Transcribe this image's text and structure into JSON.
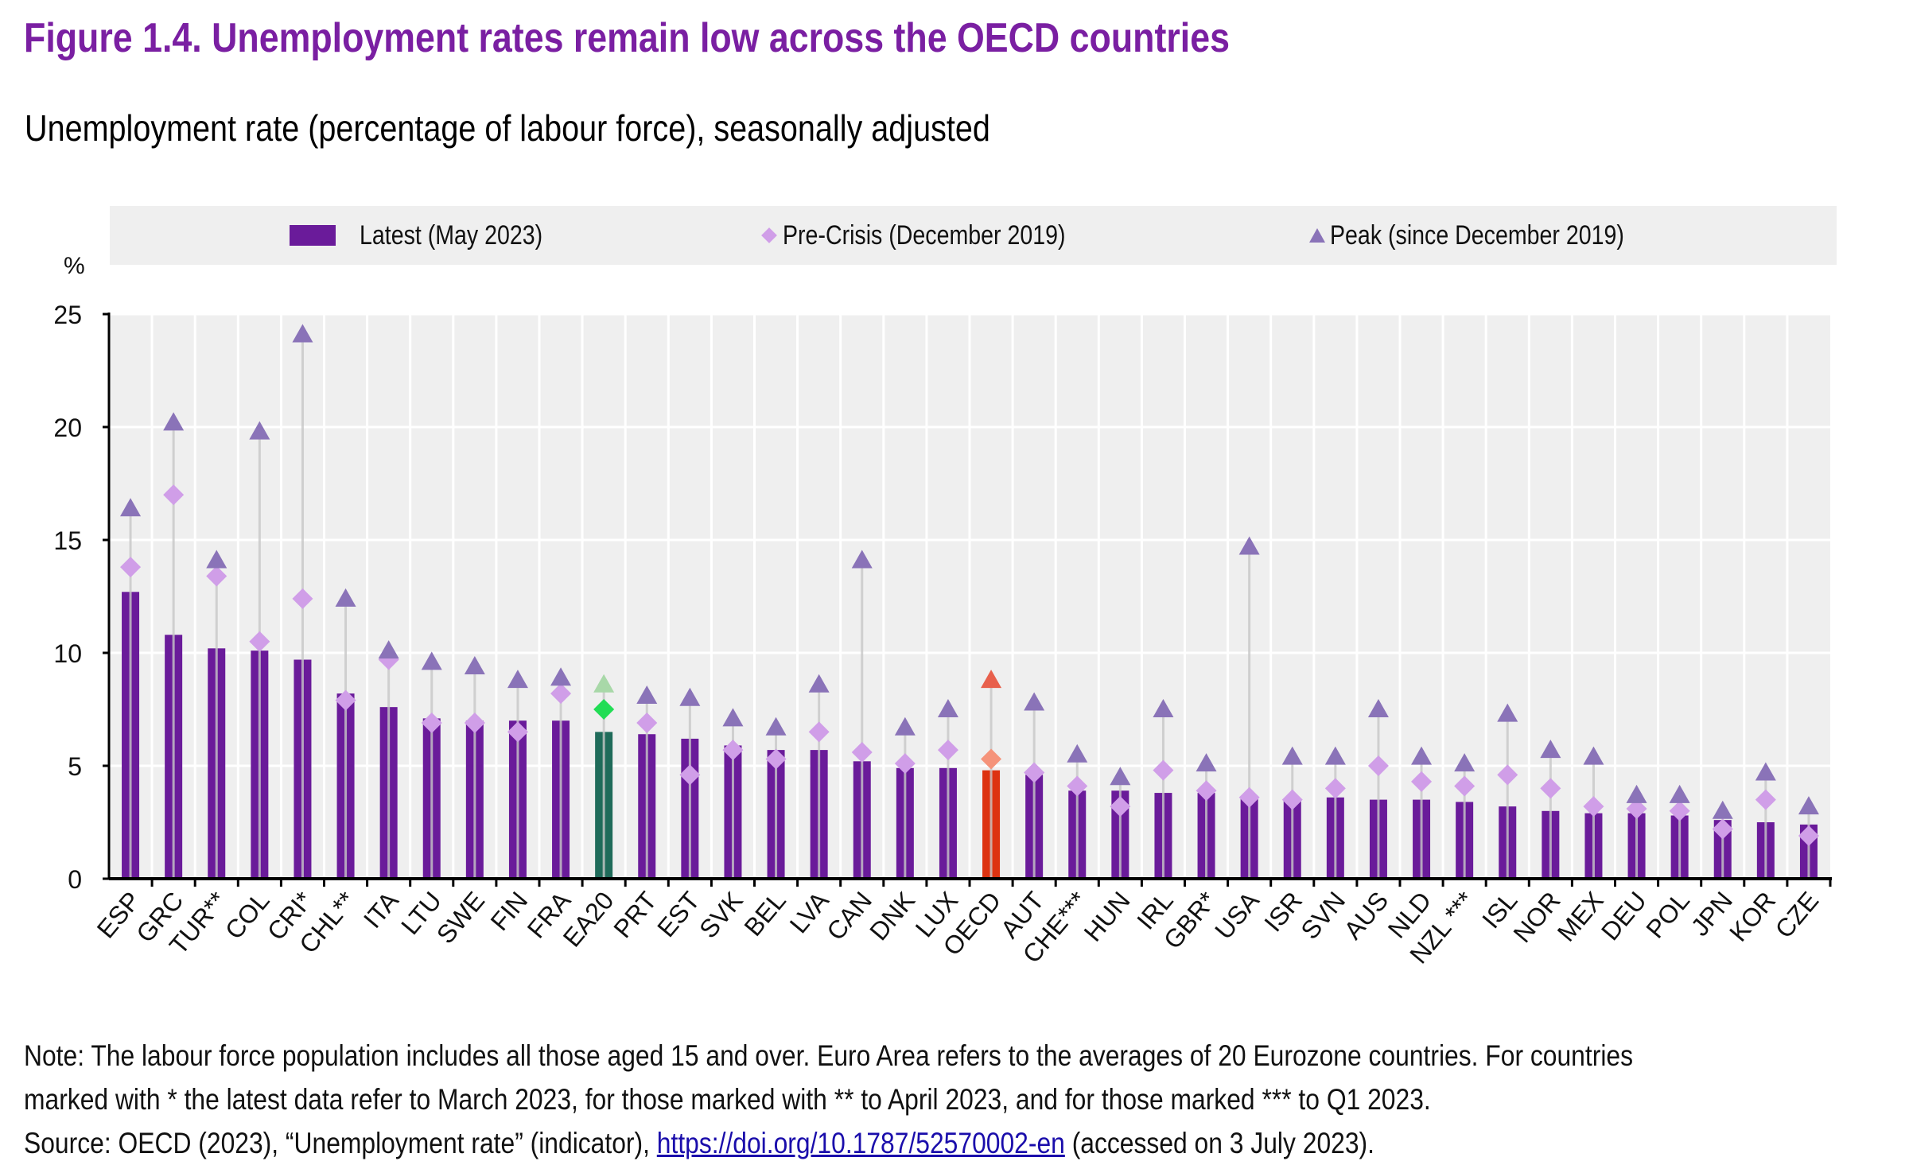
{
  "title": "Figure 1.4. Unemployment rates remain low across the OECD countries",
  "subtitle": "Unemployment rate (percentage of labour force), seasonally adjusted",
  "legend": {
    "latest": "Latest (May 2023)",
    "precrisis": "Pre-Crisis (December 2019)",
    "peak": "Peak (since December 2019)"
  },
  "y_unit": "%",
  "notes": {
    "line1": "Note: The labour force population includes all those aged 15 and over. Euro Area refers to the averages of 20 Eurozone countries. For countries",
    "line2": "marked with * the latest data refer to March 2023, for those marked with ** to April 2023, and for those marked *** to Q1 2023.",
    "source_prefix": "Source: OECD (2023), “Unemployment rate” (indicator), ",
    "source_link": "https://doi.org/10.1787/52570002-en",
    "source_suffix": " (accessed on 3 July 2023)."
  },
  "colors": {
    "bar": "#6a1b9a",
    "precrisis": "#d09ee8",
    "peak": "#8a73b8",
    "ea20_bar": "#1f6b5a",
    "ea20_precrisis": "#22dd55",
    "ea20_peak": "#a8d8a8",
    "oecd_bar": "#dd3311",
    "oecd_precrisis": "#f5937a",
    "oecd_peak": "#e8604c",
    "title": "#7a1fa2"
  },
  "chart_data": {
    "type": "bar",
    "title": "Figure 1.4. Unemployment rates remain low across the OECD countries",
    "subtitle": "Unemployment rate (percentage of labour force), seasonally adjusted",
    "xlabel": "",
    "ylabel": "%",
    "ylim": [
      0,
      25
    ],
    "yticks": [
      0,
      5,
      10,
      15,
      20,
      25
    ],
    "grid": true,
    "legend_position": "top",
    "highlight": {
      "EA20": "ea20",
      "OECD": "oecd"
    },
    "categories": [
      "ESP",
      "GRC",
      "TUR**",
      "COL",
      "CRI*",
      "CHL**",
      "ITA",
      "LTU",
      "SWE",
      "FIN",
      "FRA",
      "EA20",
      "PRT",
      "EST",
      "SVK",
      "BEL",
      "LVA",
      "CAN",
      "DNK",
      "LUX",
      "OECD",
      "AUT",
      "CHE***",
      "HUN",
      "IRL",
      "GBR*",
      "USA",
      "ISR",
      "SVN",
      "AUS",
      "NLD",
      "NZL ***",
      "ISL",
      "NOR",
      "MEX",
      "DEU",
      "POL",
      "JPN",
      "KOR",
      "CZE"
    ],
    "series": [
      {
        "name": "Latest (May 2023)",
        "kind": "bar",
        "values": [
          12.7,
          10.8,
          10.2,
          10.1,
          9.7,
          8.2,
          7.6,
          7.1,
          7.0,
          7.0,
          7.0,
          6.5,
          6.4,
          6.2,
          5.9,
          5.7,
          5.7,
          5.2,
          4.9,
          4.9,
          4.8,
          4.6,
          3.9,
          3.9,
          3.8,
          3.8,
          3.6,
          3.5,
          3.6,
          3.5,
          3.5,
          3.4,
          3.2,
          3.0,
          2.9,
          2.9,
          2.8,
          2.6,
          2.5,
          2.4
        ]
      },
      {
        "name": "Pre-Crisis (December 2019)",
        "kind": "diamond",
        "values": [
          13.8,
          17.0,
          13.4,
          10.5,
          12.4,
          7.9,
          9.7,
          6.9,
          6.9,
          6.5,
          8.2,
          7.5,
          6.9,
          4.6,
          5.7,
          5.3,
          6.5,
          5.6,
          5.1,
          5.7,
          5.3,
          4.7,
          4.1,
          3.2,
          4.8,
          3.9,
          3.6,
          3.5,
          4.0,
          5.0,
          4.3,
          4.1,
          4.6,
          4.0,
          3.2,
          3.1,
          3.0,
          2.2,
          3.5,
          1.9
        ]
      },
      {
        "name": "Peak (since December 2019)",
        "kind": "triangle",
        "values": [
          16.4,
          20.2,
          14.1,
          19.8,
          24.1,
          12.4,
          10.1,
          9.6,
          9.4,
          8.8,
          8.9,
          8.6,
          8.1,
          8.0,
          7.1,
          6.7,
          8.6,
          14.1,
          6.7,
          7.5,
          8.8,
          7.8,
          5.5,
          4.5,
          7.5,
          5.1,
          14.7,
          5.4,
          5.4,
          7.5,
          5.4,
          5.1,
          7.3,
          5.7,
          5.4,
          3.7,
          3.7,
          3.0,
          4.7,
          3.2
        ]
      }
    ]
  }
}
